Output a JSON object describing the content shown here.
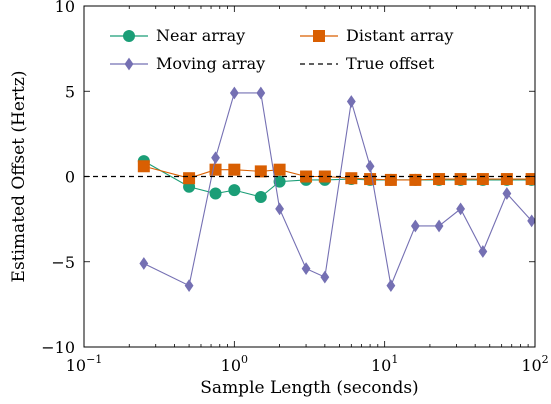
{
  "chart_data": {
    "type": "line",
    "xlabel": "Sample Length (seconds)",
    "ylabel": "Estimated Offset (Hertz)",
    "x_scale": "log",
    "xlim": [
      0.1,
      100
    ],
    "ylim": [
      -10,
      10
    ],
    "x_ticks": [
      {
        "value": 0.1,
        "base": "10",
        "exp": "−1"
      },
      {
        "value": 1,
        "base": "10",
        "exp": "0"
      },
      {
        "value": 10,
        "base": "10",
        "exp": "1"
      },
      {
        "value": 100,
        "base": "10",
        "exp": "2"
      }
    ],
    "y_ticks": [
      {
        "value": 10,
        "label": "10"
      },
      {
        "value": 5,
        "label": "5"
      },
      {
        "value": 0,
        "label": "0"
      },
      {
        "value": -5,
        "label": "−5"
      },
      {
        "value": -10,
        "label": "−10"
      }
    ],
    "grid": false,
    "legend_position": "top",
    "series": [
      {
        "name": "Near array",
        "color": "#1b9e77",
        "marker": "circle",
        "x": [
          0.25,
          0.5,
          0.75,
          1.0,
          1.5,
          2.0,
          3.0,
          4.0,
          6.0,
          8.0,
          11.0,
          16.0,
          23.0,
          32.0,
          45.0,
          65.0,
          95.0
        ],
        "y": [
          0.9,
          -0.6,
          -1.0,
          -0.8,
          -1.2,
          -0.3,
          -0.2,
          -0.2,
          -0.15,
          -0.2,
          -0.2,
          -0.2,
          -0.2,
          -0.2,
          -0.2,
          -0.2,
          -0.2
        ]
      },
      {
        "name": "Distant array",
        "color": "#d95f02",
        "marker": "square",
        "x": [
          0.25,
          0.5,
          0.75,
          1.0,
          1.5,
          2.0,
          3.0,
          4.0,
          6.0,
          8.0,
          11.0,
          16.0,
          23.0,
          32.0,
          45.0,
          65.0,
          95.0
        ],
        "y": [
          0.6,
          -0.1,
          0.4,
          0.4,
          0.3,
          0.4,
          0.0,
          0.0,
          -0.1,
          -0.15,
          -0.2,
          -0.2,
          -0.15,
          -0.15,
          -0.15,
          -0.15,
          -0.15
        ]
      },
      {
        "name": "Moving array",
        "color": "#7570b3",
        "marker": "diamond",
        "x": [
          0.25,
          0.5,
          0.75,
          1.0,
          1.5,
          2.0,
          3.0,
          4.0,
          6.0,
          8.0,
          11.0,
          16.0,
          23.0,
          32.0,
          45.0,
          65.0,
          95.0
        ],
        "y": [
          -5.1,
          -6.4,
          1.1,
          4.9,
          4.9,
          -1.9,
          -5.4,
          -5.9,
          4.4,
          0.6,
          -6.4,
          -2.9,
          -2.9,
          -1.9,
          -4.4,
          -1.0,
          -2.6
        ]
      },
      {
        "name": "True offset",
        "color": "#000000",
        "style": "dashed",
        "y_constant": 0
      }
    ]
  }
}
